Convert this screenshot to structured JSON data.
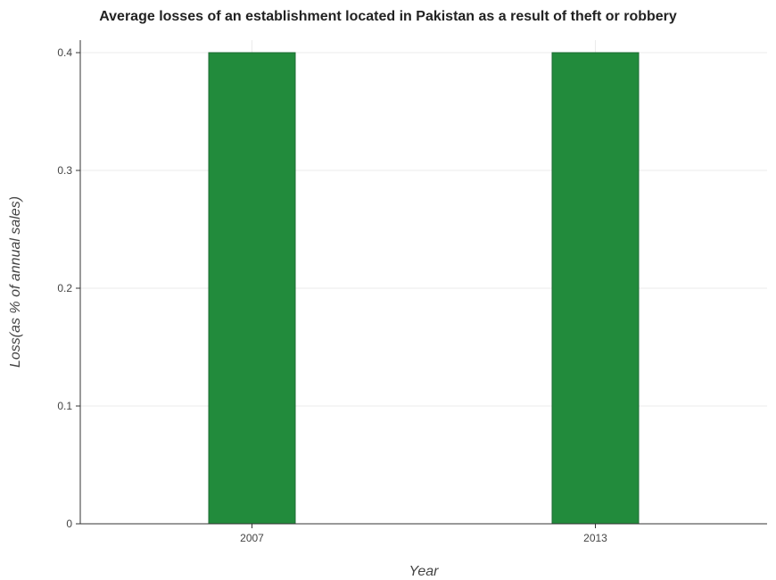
{
  "chart_data": {
    "type": "bar",
    "title": "Average losses of an establishment located in Pakistan as a result of theft or robbery",
    "xlabel": "Year",
    "ylabel": "Loss(as % of annual sales)",
    "categories": [
      "2007",
      "2013"
    ],
    "values": [
      0.4,
      0.4
    ],
    "ylim": [
      0,
      0.4
    ],
    "yticks": [
      0,
      0.1,
      0.2,
      0.3,
      0.4
    ],
    "ytick_labels": [
      "0",
      "0.1",
      "0.2",
      "0.3",
      "0.4"
    ],
    "bar_color": "#228b3c",
    "bar_edge_color": "#1e6b34",
    "grid": true,
    "legend": "none"
  }
}
